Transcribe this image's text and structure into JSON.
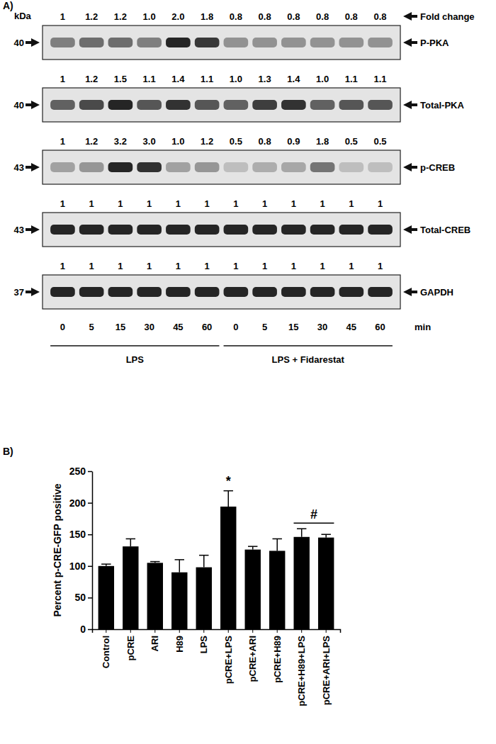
{
  "chart_data": [
    {
      "type": "blot",
      "panel_label": "A)",
      "unit_label": "kDa",
      "fold_label": "Fold change",
      "rows": [
        {
          "name": "P-PKA",
          "kda": 40,
          "values": [
            1,
            1.2,
            1.2,
            1.0,
            2.0,
            1.8,
            0.8,
            0.8,
            0.8,
            0.8,
            0.8,
            0.8
          ],
          "value_labels": [
            "1",
            "1.2",
            "1.2",
            "1.0",
            "2.0",
            "1.8",
            "0.8",
            "0.8",
            "0.8",
            "0.8",
            "0.8",
            "0.8"
          ]
        },
        {
          "name": "Total-PKA",
          "kda": 40,
          "values": [
            1,
            1.2,
            1.5,
            1.1,
            1.4,
            1.1,
            1.0,
            1.3,
            1.4,
            1.0,
            1.1,
            1.1
          ],
          "value_labels": [
            "1",
            "1.2",
            "1.5",
            "1.1",
            "1.4",
            "1.1",
            "1.0",
            "1.3",
            "1.4",
            "1.0",
            "1.1",
            "1.1"
          ]
        },
        {
          "name": "p-CREB",
          "kda": 43,
          "values": [
            1,
            1.2,
            3.2,
            3.0,
            1.0,
            1.2,
            0.5,
            0.8,
            0.9,
            1.8,
            0.5,
            0.5
          ],
          "value_labels": [
            "1",
            "1.2",
            "3.2",
            "3.0",
            "1.0",
            "1.2",
            "0.5",
            "0.8",
            "0.9",
            "1.8",
            "0.5",
            "0.5"
          ]
        },
        {
          "name": "Total-CREB",
          "kda": 43,
          "values": [
            1,
            1,
            1,
            1,
            1,
            1,
            1,
            1,
            1,
            1,
            1,
            1
          ],
          "value_labels": [
            "1",
            "1",
            "1",
            "1",
            "1",
            "1",
            "1",
            "1",
            "1",
            "1",
            "1",
            "1"
          ]
        },
        {
          "name": "GAPDH",
          "kda": 37,
          "values": [
            1,
            1,
            1,
            1,
            1,
            1,
            1,
            1,
            1,
            1,
            1,
            1
          ],
          "value_labels": [
            "1",
            "1",
            "1",
            "1",
            "1",
            "1",
            "1",
            "1",
            "1",
            "1",
            "1",
            "1"
          ]
        }
      ],
      "time_labels": [
        0,
        5,
        15,
        30,
        45,
        60,
        0,
        5,
        15,
        30,
        45,
        60
      ],
      "time_unit": "min",
      "groups": [
        {
          "name": "LPS",
          "lanes": 6
        },
        {
          "name": "LPS + Fidarestat",
          "lanes": 6
        }
      ]
    },
    {
      "type": "bar",
      "panel_label": "B)",
      "y_label": "Percent p-CRE-GFP positive",
      "categories": [
        "Control",
        "pCRE",
        "ARI",
        "H89",
        "LPS",
        "pCRE+LPS",
        "pCRE+ARI",
        "pCRE+H89",
        "pCRE+H89+LPS",
        "pCRE+ARI+LPS"
      ],
      "values": [
        100,
        131,
        105,
        90,
        98,
        194,
        126,
        124,
        146,
        145
      ],
      "errors": [
        3,
        12,
        2,
        20,
        19,
        25,
        5,
        19,
        13,
        5
      ],
      "color": "#000000",
      "ylim": [
        0,
        250
      ],
      "yticks": [
        0,
        50,
        100,
        150,
        200,
        250
      ],
      "annotations": [
        {
          "text": "*",
          "categories": [
            "pCRE+LPS"
          ]
        },
        {
          "text": "#",
          "categories": [
            "pCRE+H89+LPS",
            "pCRE+ARI+LPS"
          ]
        }
      ]
    }
  ]
}
